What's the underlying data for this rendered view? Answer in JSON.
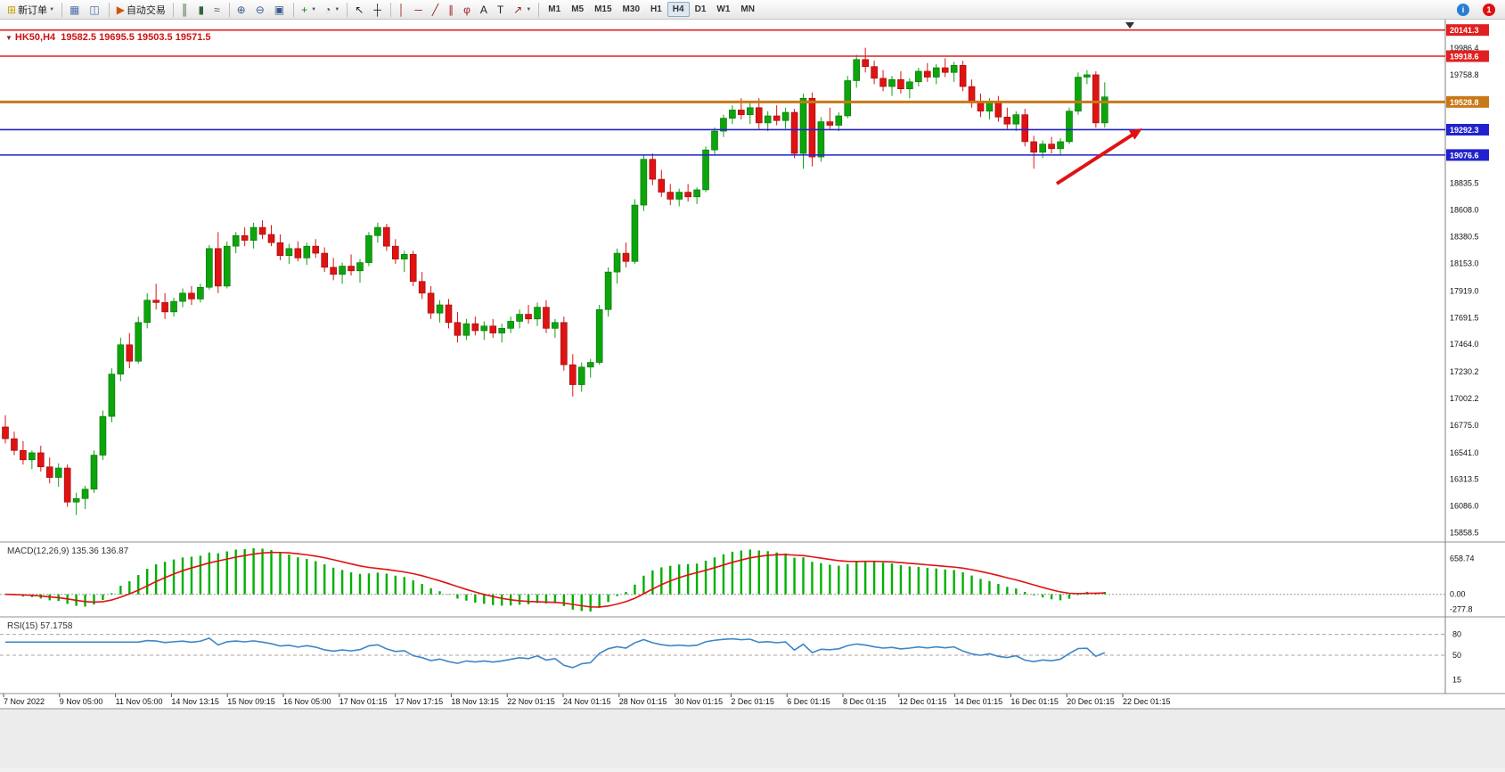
{
  "toolbar_meta": {
    "notification_count": "1"
  },
  "toolbar_items": [
    {
      "name": "new-order-button",
      "glyph": "⊞",
      "glyph_color": "#c8a000",
      "label": "新订单",
      "caret": true
    },
    {
      "sep": true
    },
    {
      "name": "chart-window-icon",
      "glyph": "▦",
      "glyph_color": "#4a6ea8"
    },
    {
      "name": "profiles-icon",
      "glyph": "◫",
      "glyph_color": "#4a6ea8"
    },
    {
      "sep": true
    },
    {
      "name": "auto-trading-button",
      "glyph": "▶",
      "glyph_color": "#d35400",
      "label": "自动交易"
    },
    {
      "sep": true
    },
    {
      "name": "bar-chart-icon",
      "glyph": "║",
      "glyph_color": "#35633b"
    },
    {
      "name": "candlestick-chart-icon",
      "glyph": "▮",
      "glyph_color": "#35633b"
    },
    {
      "name": "line-chart-icon",
      "glyph": "≈",
      "glyph_color": "#35633b"
    },
    {
      "sep": true
    },
    {
      "name": "zoom-in-icon",
      "glyph": "⊕",
      "glyph_color": "#3a5a8a"
    },
    {
      "name": "zoom-out-icon",
      "glyph": "⊖",
      "glyph_color": "#3a5a8a"
    },
    {
      "name": "tile-windows-icon",
      "glyph": "▣",
      "glyph_color": "#3a5a8a"
    },
    {
      "sep": true
    },
    {
      "name": "indicators-icon",
      "glyph": "+",
      "glyph_color": "#0a8a0a",
      "caret": true
    },
    {
      "name": "cycles-icon",
      "glyph": "◔",
      "glyph_color": "#3a5a8a",
      "caret": true
    },
    {
      "sep": true
    },
    {
      "name": "cursor-icon",
      "glyph": "↖",
      "glyph_color": "#222222"
    },
    {
      "name": "crosshair-icon",
      "glyph": "┼",
      "glyph_color": "#222222"
    },
    {
      "sep": true
    },
    {
      "name": "vertical-line-icon",
      "glyph": "│",
      "glyph_color": "#a02020"
    },
    {
      "name": "horizontal-line-icon",
      "glyph": "─",
      "glyph_color": "#a02020"
    },
    {
      "name": "trendline-icon",
      "glyph": "╱",
      "glyph_color": "#a02020"
    },
    {
      "name": "channel-icon",
      "glyph": "∥",
      "glyph_color": "#a02020"
    },
    {
      "name": "fibonacci-icon",
      "glyph": "φ",
      "glyph_color": "#a02020"
    },
    {
      "name": "text-icon",
      "glyph": "A",
      "glyph_color": "#222222"
    },
    {
      "name": "label-icon",
      "glyph": "T",
      "glyph_color": "#222222"
    },
    {
      "name": "arrows-icon",
      "glyph": "↗",
      "glyph_color": "#a02020",
      "caret": true
    },
    {
      "sep": true
    },
    {
      "timeframes": [
        "M1",
        "M5",
        "M15",
        "M30",
        "H1",
        "H4",
        "D1",
        "W1",
        "MN"
      ],
      "active": "H4"
    },
    {
      "spacer": true
    },
    {
      "name": "community-icon",
      "circle": "#2a7fd4",
      "glyph": "i"
    },
    {
      "name": "notifications-badge",
      "circle": "#e01010",
      "bind_label": "notification_count"
    }
  ],
  "chart": {
    "symbol_line": "HK50,H4  19582.5 19695.5 19503.5 19571.5",
    "macd_label": "MACD(12,26,9) 135.36 136.87",
    "rsi_label": "RSI(15) 57.1758"
  },
  "chart_data": {
    "type": "candlestick",
    "symbol": "HK50",
    "timeframe": "H4",
    "ohlc_readout": {
      "open": "19582.5",
      "high": "19695.5",
      "low": "19503.5",
      "close": "19571.5"
    },
    "price_range": [
      15780,
      20230
    ],
    "candles": [
      [
        16760,
        16860,
        16620,
        16660
      ],
      [
        16660,
        16720,
        16520,
        16560
      ],
      [
        16560,
        16640,
        16440,
        16480
      ],
      [
        16480,
        16560,
        16400,
        16540
      ],
      [
        16540,
        16600,
        16380,
        16420
      ],
      [
        16420,
        16500,
        16280,
        16330
      ],
      [
        16330,
        16450,
        16250,
        16410
      ],
      [
        16410,
        16440,
        16080,
        16120
      ],
      [
        16120,
        16200,
        16010,
        16150
      ],
      [
        16150,
        16260,
        16060,
        16230
      ],
      [
        16230,
        16560,
        16200,
        16520
      ],
      [
        16520,
        16900,
        16480,
        16850
      ],
      [
        16850,
        17260,
        16800,
        17210
      ],
      [
        17210,
        17520,
        17150,
        17460
      ],
      [
        17460,
        17560,
        17260,
        17320
      ],
      [
        17320,
        17700,
        17300,
        17650
      ],
      [
        17650,
        17900,
        17600,
        17840
      ],
      [
        17840,
        17980,
        17760,
        17820
      ],
      [
        17820,
        17900,
        17680,
        17740
      ],
      [
        17740,
        17860,
        17700,
        17830
      ],
      [
        17830,
        17940,
        17780,
        17900
      ],
      [
        17900,
        17960,
        17800,
        17850
      ],
      [
        17850,
        17980,
        17820,
        17950
      ],
      [
        17950,
        18310,
        17930,
        18280
      ],
      [
        18280,
        18420,
        17900,
        17960
      ],
      [
        17960,
        18340,
        17940,
        18300
      ],
      [
        18300,
        18420,
        18240,
        18390
      ],
      [
        18390,
        18460,
        18300,
        18350
      ],
      [
        18350,
        18500,
        18280,
        18460
      ],
      [
        18460,
        18520,
        18360,
        18400
      ],
      [
        18400,
        18480,
        18300,
        18330
      ],
      [
        18330,
        18400,
        18180,
        18220
      ],
      [
        18220,
        18320,
        18150,
        18280
      ],
      [
        18280,
        18340,
        18170,
        18200
      ],
      [
        18200,
        18330,
        18140,
        18300
      ],
      [
        18300,
        18360,
        18200,
        18240
      ],
      [
        18240,
        18290,
        18080,
        18120
      ],
      [
        18120,
        18200,
        18010,
        18060
      ],
      [
        18060,
        18160,
        17980,
        18130
      ],
      [
        18130,
        18230,
        18050,
        18090
      ],
      [
        18090,
        18190,
        17990,
        18160
      ],
      [
        18160,
        18420,
        18130,
        18390
      ],
      [
        18390,
        18500,
        18330,
        18460
      ],
      [
        18460,
        18490,
        18260,
        18300
      ],
      [
        18300,
        18360,
        18150,
        18190
      ],
      [
        18190,
        18260,
        18080,
        18230
      ],
      [
        18230,
        18260,
        17960,
        18000
      ],
      [
        18000,
        18080,
        17850,
        17900
      ],
      [
        17900,
        17960,
        17680,
        17730
      ],
      [
        17730,
        17840,
        17650,
        17800
      ],
      [
        17800,
        17850,
        17600,
        17650
      ],
      [
        17650,
        17740,
        17480,
        17540
      ],
      [
        17540,
        17680,
        17500,
        17640
      ],
      [
        17640,
        17700,
        17540,
        17580
      ],
      [
        17580,
        17660,
        17500,
        17620
      ],
      [
        17620,
        17680,
        17520,
        17560
      ],
      [
        17560,
        17640,
        17480,
        17600
      ],
      [
        17600,
        17700,
        17560,
        17660
      ],
      [
        17660,
        17760,
        17600,
        17720
      ],
      [
        17720,
        17800,
        17640,
        17680
      ],
      [
        17680,
        17820,
        17620,
        17780
      ],
      [
        17780,
        17840,
        17560,
        17600
      ],
      [
        17600,
        17680,
        17520,
        17650
      ],
      [
        17650,
        17700,
        17240,
        17290
      ],
      [
        17290,
        17380,
        17020,
        17120
      ],
      [
        17120,
        17310,
        17060,
        17270
      ],
      [
        17270,
        17340,
        17180,
        17310
      ],
      [
        17310,
        17800,
        17290,
        17760
      ],
      [
        17760,
        18120,
        17700,
        18080
      ],
      [
        18080,
        18280,
        17980,
        18240
      ],
      [
        18240,
        18330,
        18120,
        18170
      ],
      [
        18170,
        18700,
        18150,
        18650
      ],
      [
        18650,
        19080,
        18600,
        19040
      ],
      [
        19040,
        19090,
        18820,
        18870
      ],
      [
        18870,
        18950,
        18720,
        18760
      ],
      [
        18760,
        18830,
        18650,
        18700
      ],
      [
        18700,
        18790,
        18640,
        18760
      ],
      [
        18760,
        18830,
        18680,
        18720
      ],
      [
        18720,
        18800,
        18660,
        18780
      ],
      [
        18780,
        19150,
        18760,
        19120
      ],
      [
        19120,
        19310,
        19080,
        19280
      ],
      [
        19280,
        19420,
        19230,
        19390
      ],
      [
        19390,
        19500,
        19340,
        19460
      ],
      [
        19460,
        19560,
        19380,
        19420
      ],
      [
        19420,
        19520,
        19340,
        19480
      ],
      [
        19480,
        19560,
        19300,
        19350
      ],
      [
        19350,
        19450,
        19280,
        19410
      ],
      [
        19410,
        19500,
        19330,
        19370
      ],
      [
        19370,
        19480,
        19300,
        19440
      ],
      [
        19440,
        19470,
        19050,
        19090
      ],
      [
        19090,
        19600,
        18960,
        19560
      ],
      [
        19560,
        19610,
        18980,
        19060
      ],
      [
        19060,
        19400,
        19020,
        19360
      ],
      [
        19360,
        19480,
        19300,
        19330
      ],
      [
        19330,
        19440,
        19280,
        19410
      ],
      [
        19410,
        19750,
        19390,
        19710
      ],
      [
        19710,
        19930,
        19650,
        19890
      ],
      [
        19890,
        19990,
        19780,
        19830
      ],
      [
        19830,
        19880,
        19680,
        19730
      ],
      [
        19730,
        19800,
        19620,
        19660
      ],
      [
        19660,
        19750,
        19580,
        19720
      ],
      [
        19720,
        19790,
        19600,
        19640
      ],
      [
        19640,
        19730,
        19560,
        19700
      ],
      [
        19700,
        19820,
        19660,
        19790
      ],
      [
        19790,
        19860,
        19700,
        19740
      ],
      [
        19740,
        19850,
        19680,
        19820
      ],
      [
        19820,
        19900,
        19740,
        19780
      ],
      [
        19780,
        19870,
        19700,
        19840
      ],
      [
        19840,
        19880,
        19620,
        19660
      ],
      [
        19660,
        19720,
        19480,
        19520
      ],
      [
        19520,
        19600,
        19400,
        19450
      ],
      [
        19450,
        19560,
        19380,
        19530
      ],
      [
        19530,
        19580,
        19360,
        19400
      ],
      [
        19400,
        19480,
        19300,
        19340
      ],
      [
        19340,
        19450,
        19280,
        19420
      ],
      [
        19420,
        19470,
        19150,
        19190
      ],
      [
        19190,
        19240,
        18960,
        19100
      ],
      [
        19100,
        19200,
        19050,
        19170
      ],
      [
        19170,
        19230,
        19090,
        19130
      ],
      [
        19130,
        19220,
        19080,
        19190
      ],
      [
        19190,
        19480,
        19170,
        19450
      ],
      [
        19450,
        19780,
        19420,
        19740
      ],
      [
        19740,
        19800,
        19680,
        19760
      ],
      [
        19760,
        19790,
        19310,
        19350
      ],
      [
        19350,
        19695.5,
        19310,
        19571.5
      ]
    ],
    "hlines": [
      {
        "price": 20141.3,
        "color": "#e02020",
        "width": 1.6,
        "label": "20141.3"
      },
      {
        "price": 19918.6,
        "color": "#e02020",
        "width": 1.6,
        "label": "19918.6"
      },
      {
        "price": 19528.8,
        "color": "#c87818",
        "width": 3,
        "label": "19528.8"
      },
      {
        "price": 19292.3,
        "color": "#2222cc",
        "width": 1.6,
        "label": "19292.3"
      },
      {
        "price": 19076.6,
        "color": "#2222cc",
        "width": 1.6,
        "label": "19076.6"
      }
    ],
    "price_axis_labels": [
      "19986.4",
      "19758.8",
      "18835.5",
      "18608.0",
      "18380.5",
      "18153.0",
      "17919.0",
      "17691.5",
      "17464.0",
      "17230.2",
      "17002.2",
      "16775.0",
      "16541.0",
      "16313.5",
      "16086.0",
      "15858.5"
    ],
    "x_axis_labels": [
      "7 Nov 2022",
      "9 Nov 05:00",
      "11 Nov 05:00",
      "14 Nov 13:15",
      "15 Nov 09:15",
      "16 Nov 05:00",
      "17 Nov 01:15",
      "17 Nov 17:15",
      "18 Nov 13:15",
      "22 Nov 01:15",
      "24 Nov 01:15",
      "28 Nov 01:15",
      "30 Nov 01:15",
      "2 Dec 01:15",
      "6 Dec 01:15",
      "8 Dec 01:15",
      "12 Dec 01:15",
      "14 Dec 01:15",
      "16 Dec 01:15",
      "20 Dec 01:15",
      "22 Dec 01:15"
    ],
    "annotation_arrow": {
      "from": [
        1186,
        184
      ],
      "to": [
        1282,
        122
      ],
      "color": "#e01212"
    },
    "up_color": "#0ca50c",
    "down_color": "#e01212",
    "macd": {
      "label": "MACD(12,26,9) 135.36 136.87",
      "params": [
        12,
        26,
        9
      ],
      "values_displayed": [
        "135.36",
        "136.87"
      ],
      "axis_labels": [
        "658.74",
        "0.00",
        "-277.8"
      ],
      "hist_color": "#00b000",
      "signal_color": "#e01212"
    },
    "rsi": {
      "label": "RSI(15) 57.1758",
      "period": 15,
      "value_displayed": "57.1758",
      "axis_labels": [
        "80",
        "50",
        "15"
      ],
      "levels": [
        80,
        50
      ],
      "line_color": "#3c86c8"
    }
  }
}
